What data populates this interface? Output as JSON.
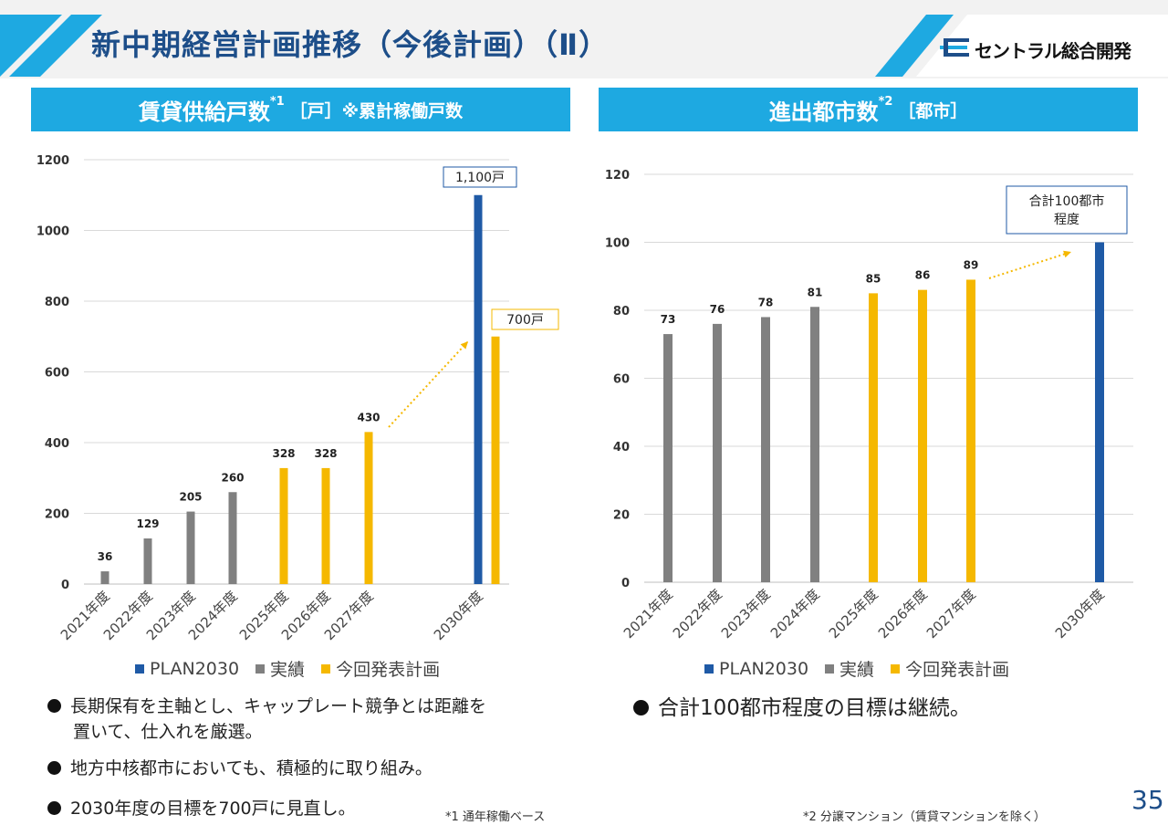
{
  "header": {
    "title": "新中期経営計画推移（今後計画）（Ⅱ）",
    "logo_text": "セントラル総合開発",
    "accent_color": "#1ea9e1",
    "title_color": "#1d4e89"
  },
  "left_panel": {
    "title_main": "賃貸供給戸数",
    "title_sup": "*1",
    "title_unit": "［戸］※累計稼働戸数"
  },
  "right_panel": {
    "title_main": "進出都市数",
    "title_sup": "*2",
    "title_unit": "［都市］"
  },
  "legend": {
    "plan": "PLAN2030",
    "actual": "実績",
    "current": "今回発表計画"
  },
  "chart_data": [
    {
      "type": "bar",
      "title": "賃貸供給戸数",
      "categories": [
        "2021年度",
        "2022年度",
        "2023年度",
        "2024年度",
        "2025年度",
        "2026年度",
        "2027年度",
        "2030年度"
      ],
      "ylim": [
        0,
        1200
      ],
      "yticks": [
        0,
        200,
        400,
        600,
        800,
        1000,
        1200
      ],
      "grid": true,
      "legend_position": "bottom",
      "series": [
        {
          "name": "PLAN2030",
          "color": "#1f5aa6",
          "values": [
            null,
            null,
            null,
            null,
            null,
            null,
            null,
            1100
          ]
        },
        {
          "name": "実績",
          "color": "#808080",
          "values": [
            36,
            129,
            205,
            260,
            null,
            null,
            null,
            null
          ]
        },
        {
          "name": "今回発表計画",
          "color": "#f5b800",
          "values": [
            null,
            null,
            null,
            null,
            328,
            328,
            430,
            700
          ]
        }
      ],
      "data_labels": [
        "36",
        "129",
        "205",
        "260",
        "328",
        "328",
        "430"
      ],
      "annotations": [
        {
          "text": "1,100戸",
          "series": "PLAN2030",
          "category": "2030年度",
          "border": "#1f5aa6"
        },
        {
          "text": "700戸",
          "series": "今回発表計画",
          "category": "2030年度",
          "border": "#f5b800"
        }
      ]
    },
    {
      "type": "bar",
      "title": "進出都市数",
      "categories": [
        "2021年度",
        "2022年度",
        "2023年度",
        "2024年度",
        "2025年度",
        "2026年度",
        "2027年度",
        "2030年度"
      ],
      "ylim": [
        0,
        120
      ],
      "yticks": [
        0,
        20,
        40,
        60,
        80,
        100,
        120
      ],
      "grid": true,
      "legend_position": "bottom",
      "series": [
        {
          "name": "PLAN2030",
          "color": "#1f5aa6",
          "values": [
            null,
            null,
            null,
            null,
            null,
            null,
            null,
            100
          ]
        },
        {
          "name": "実績",
          "color": "#808080",
          "values": [
            73,
            76,
            78,
            81,
            null,
            null,
            null,
            null
          ]
        },
        {
          "name": "今回発表計画",
          "color": "#f5b800",
          "values": [
            null,
            null,
            null,
            null,
            85,
            86,
            89,
            null
          ]
        }
      ],
      "data_labels": [
        "73",
        "76",
        "78",
        "81",
        "85",
        "86",
        "89"
      ],
      "annotations": [
        {
          "text": "合計100都市\n程度",
          "series": "PLAN2030",
          "category": "2030年度",
          "border": "#1f5aa6"
        }
      ]
    }
  ],
  "bullets_left": [
    {
      "text": "長期保有を主軸とし、キャップレート競争とは距離を",
      "cont": "置いて、仕入れを厳選。"
    },
    {
      "text": "地方中核都市においても、積極的に取り組み。"
    },
    {
      "text": "2030年度の目標を700戸に見直し。"
    }
  ],
  "bullets_right": [
    {
      "text": "合計100都市程度の目標は継続。"
    }
  ],
  "footnotes": {
    "left": "*1 通年稼働ベース",
    "right": "*2 分譲マンション（賃貸マンションを除く）"
  },
  "page_number": "35"
}
